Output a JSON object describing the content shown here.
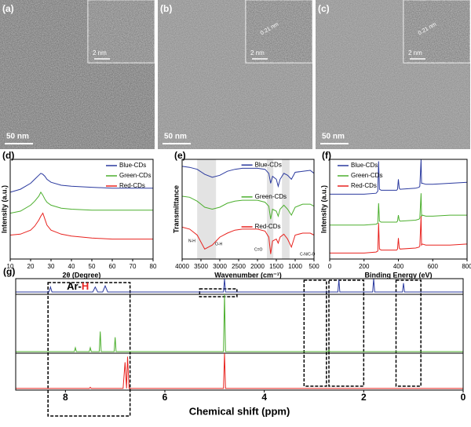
{
  "images": [
    {
      "label": "(a)",
      "scale_bar": "50 nm",
      "inset_scale_bar": "2 nm"
    },
    {
      "label": "(b)",
      "scale_bar": "50 nm",
      "inset_scale_bar": "2 nm",
      "lattice": "0.21 nm"
    },
    {
      "label": "(c)",
      "scale_bar": "50 nm",
      "inset_scale_bar": "2 nm",
      "lattice": "0.21 nm"
    }
  ],
  "chart_data": [
    {
      "type": "line",
      "label": "(d)",
      "xlabel": "2θ (Degree)",
      "ylabel": "Intensity (a.u.)",
      "xlim": [
        10,
        80
      ],
      "xticks": [
        10,
        20,
        30,
        40,
        50,
        60,
        70,
        80
      ],
      "ylim": [
        0,
        10
      ],
      "legend": "upper right",
      "x": [
        10,
        15,
        20,
        22,
        24,
        25,
        26,
        27,
        28,
        30,
        35,
        40,
        50,
        60,
        70,
        80
      ],
      "series": [
        {
          "name": "Blue-CDs",
          "color": "#2b3a9f",
          "values": [
            6.7,
            7.0,
            7.6,
            8.0,
            8.4,
            8.6,
            8.5,
            8.3,
            8.0,
            7.7,
            7.4,
            7.3,
            7.2,
            7.1,
            7.1,
            7.1
          ]
        },
        {
          "name": "Green-CDs",
          "color": "#4caf2e",
          "values": [
            4.6,
            4.8,
            5.4,
            5.8,
            6.3,
            6.7,
            6.4,
            6.0,
            5.7,
            5.4,
            5.1,
            5.0,
            4.9,
            4.9,
            4.9,
            4.9
          ]
        },
        {
          "name": "Red-CDs",
          "color": "#e8231f",
          "values": [
            2.4,
            2.5,
            2.9,
            3.3,
            3.9,
            4.3,
            4.6,
            4.0,
            3.4,
            2.9,
            2.5,
            2.3,
            2.1,
            2.0,
            2.0,
            2.0
          ]
        }
      ]
    },
    {
      "type": "line",
      "label": "(e)",
      "xlabel": "Wavenumber (cm⁻¹)",
      "ylabel": "Transmittance",
      "xlim": [
        4000,
        500
      ],
      "xticks": [
        4000,
        3500,
        3000,
        2500,
        2000,
        1500,
        1000,
        500
      ],
      "ylim": [
        0,
        10
      ],
      "legend": "inline",
      "annotations": [
        "N-H",
        "O-H",
        "C=O",
        "C-N/C-O"
      ],
      "x": [
        4000,
        3800,
        3600,
        3400,
        3200,
        3000,
        2800,
        2600,
        2400,
        2200,
        2000,
        1800,
        1700,
        1650,
        1600,
        1500,
        1450,
        1400,
        1300,
        1200,
        1100,
        1000,
        800,
        600,
        500
      ],
      "series": [
        {
          "name": "Blue-CDs",
          "color": "#2b3a9f",
          "values": [
            9.3,
            9.2,
            9.0,
            8.5,
            8.2,
            8.4,
            8.8,
            9.0,
            9.1,
            9.1,
            9.1,
            9.0,
            8.6,
            7.6,
            8.3,
            8.0,
            7.3,
            8.0,
            8.6,
            8.4,
            8.0,
            8.7,
            8.8,
            8.9,
            8.6
          ]
        },
        {
          "name": "Green-CDs",
          "color": "#4caf2e",
          "values": [
            6.3,
            6.2,
            5.8,
            5.2,
            5.0,
            5.2,
            5.6,
            5.8,
            5.9,
            5.9,
            5.9,
            5.7,
            5.3,
            4.0,
            5.0,
            4.8,
            4.3,
            5.0,
            5.4,
            5.0,
            4.4,
            5.2,
            5.5,
            5.5,
            5.3
          ]
        },
        {
          "name": "Red-CDs",
          "color": "#e8231f",
          "values": [
            3.2,
            3.0,
            2.4,
            1.0,
            1.4,
            2.2,
            2.6,
            2.9,
            3.0,
            3.0,
            3.0,
            2.8,
            2.2,
            0.5,
            1.8,
            2.0,
            1.6,
            2.2,
            2.5,
            2.0,
            1.2,
            2.4,
            2.6,
            2.6,
            2.4
          ]
        }
      ]
    },
    {
      "type": "line",
      "label": "(f)",
      "xlabel": "Binding Energy (eV)",
      "ylabel": "Intensity (a.u.)",
      "xlim": [
        0,
        800
      ],
      "xticks": [
        0,
        200,
        400,
        600,
        800
      ],
      "ylim": [
        0,
        10
      ],
      "legend": "upper left",
      "x": [
        0,
        100,
        200,
        270,
        280,
        285,
        290,
        300,
        390,
        395,
        400,
        405,
        410,
        500,
        520,
        525,
        532,
        535,
        540,
        560,
        600,
        700,
        800
      ],
      "series": [
        {
          "name": "Blue-CDs",
          "color": "#2b3a9f",
          "values": [
            6.5,
            6.5,
            6.5,
            6.6,
            6.8,
            9.8,
            7.0,
            6.9,
            6.9,
            7.0,
            8.0,
            7.1,
            7.0,
            7.1,
            7.2,
            7.3,
            10,
            7.6,
            7.6,
            7.5,
            7.5,
            7.6,
            7.7
          ]
        },
        {
          "name": "Green-CDs",
          "color": "#4caf2e",
          "values": [
            3.4,
            3.4,
            3.4,
            3.5,
            3.6,
            5.6,
            3.8,
            3.7,
            3.7,
            3.8,
            4.4,
            3.9,
            3.8,
            3.9,
            4.0,
            4.1,
            6.6,
            4.3,
            4.4,
            4.3,
            4.3,
            4.4,
            4.4
          ]
        },
        {
          "name": "Red-CDs",
          "color": "#e8231f",
          "values": [
            0.6,
            0.6,
            0.6,
            0.7,
            0.8,
            3.6,
            1.0,
            0.9,
            0.9,
            1.0,
            2.1,
            1.1,
            1.0,
            1.1,
            1.2,
            1.3,
            4.3,
            1.4,
            1.5,
            1.4,
            1.4,
            1.4,
            1.5
          ]
        }
      ]
    },
    {
      "type": "nmr",
      "label": "(g)",
      "xlabel": "Chemical shift (ppm)",
      "xlim": [
        9,
        0
      ],
      "xticks": [
        8,
        6,
        4,
        2,
        0
      ],
      "ylim": [
        0,
        2
      ],
      "annotation_parts": [
        "Ar-",
        "H"
      ],
      "series": [
        {
          "color": "#2b3a9f",
          "x": [
            9,
            8.33,
            8.3,
            8.27,
            7.45,
            7.4,
            7.35,
            7.25,
            7.2,
            7.15,
            4.82,
            4.8,
            4.78,
            2.52,
            2.5,
            2.48,
            1.82,
            1.8,
            1.78,
            1.22,
            1.2,
            1.18,
            0
          ],
          "values": [
            1.76,
            1.76,
            1.85,
            1.76,
            1.76,
            1.85,
            1.76,
            1.76,
            1.87,
            1.76,
            1.76,
            2.0,
            1.76,
            1.76,
            1.98,
            1.76,
            1.76,
            2.0,
            1.76,
            1.76,
            1.92,
            1.76,
            1.76
          ]
        },
        {
          "color": "#4caf2e",
          "x": [
            9,
            7.82,
            7.8,
            7.78,
            7.52,
            7.5,
            7.48,
            7.32,
            7.3,
            7.28,
            7.02,
            7.0,
            6.98,
            4.82,
            4.8,
            4.78,
            2.72,
            2.7,
            2.68,
            0
          ],
          "values": [
            0.69,
            0.69,
            0.76,
            0.69,
            0.69,
            0.76,
            0.69,
            0.69,
            1.05,
            0.69,
            0.69,
            0.95,
            0.69,
            0.69,
            1.72,
            0.69,
            0.69,
            0.72,
            0.69,
            0.69
          ]
        },
        {
          "color": "#e8231f",
          "x": [
            9,
            7.52,
            7.5,
            7.48,
            6.84,
            6.8,
            6.77,
            6.75,
            6.72,
            4.82,
            4.8,
            4.78,
            0
          ],
          "values": [
            0.03,
            0.03,
            0.05,
            0.03,
            0.03,
            0.5,
            0.03,
            0.6,
            0.03,
            0.03,
            0.66,
            0.03,
            0.03
          ]
        }
      ]
    }
  ]
}
